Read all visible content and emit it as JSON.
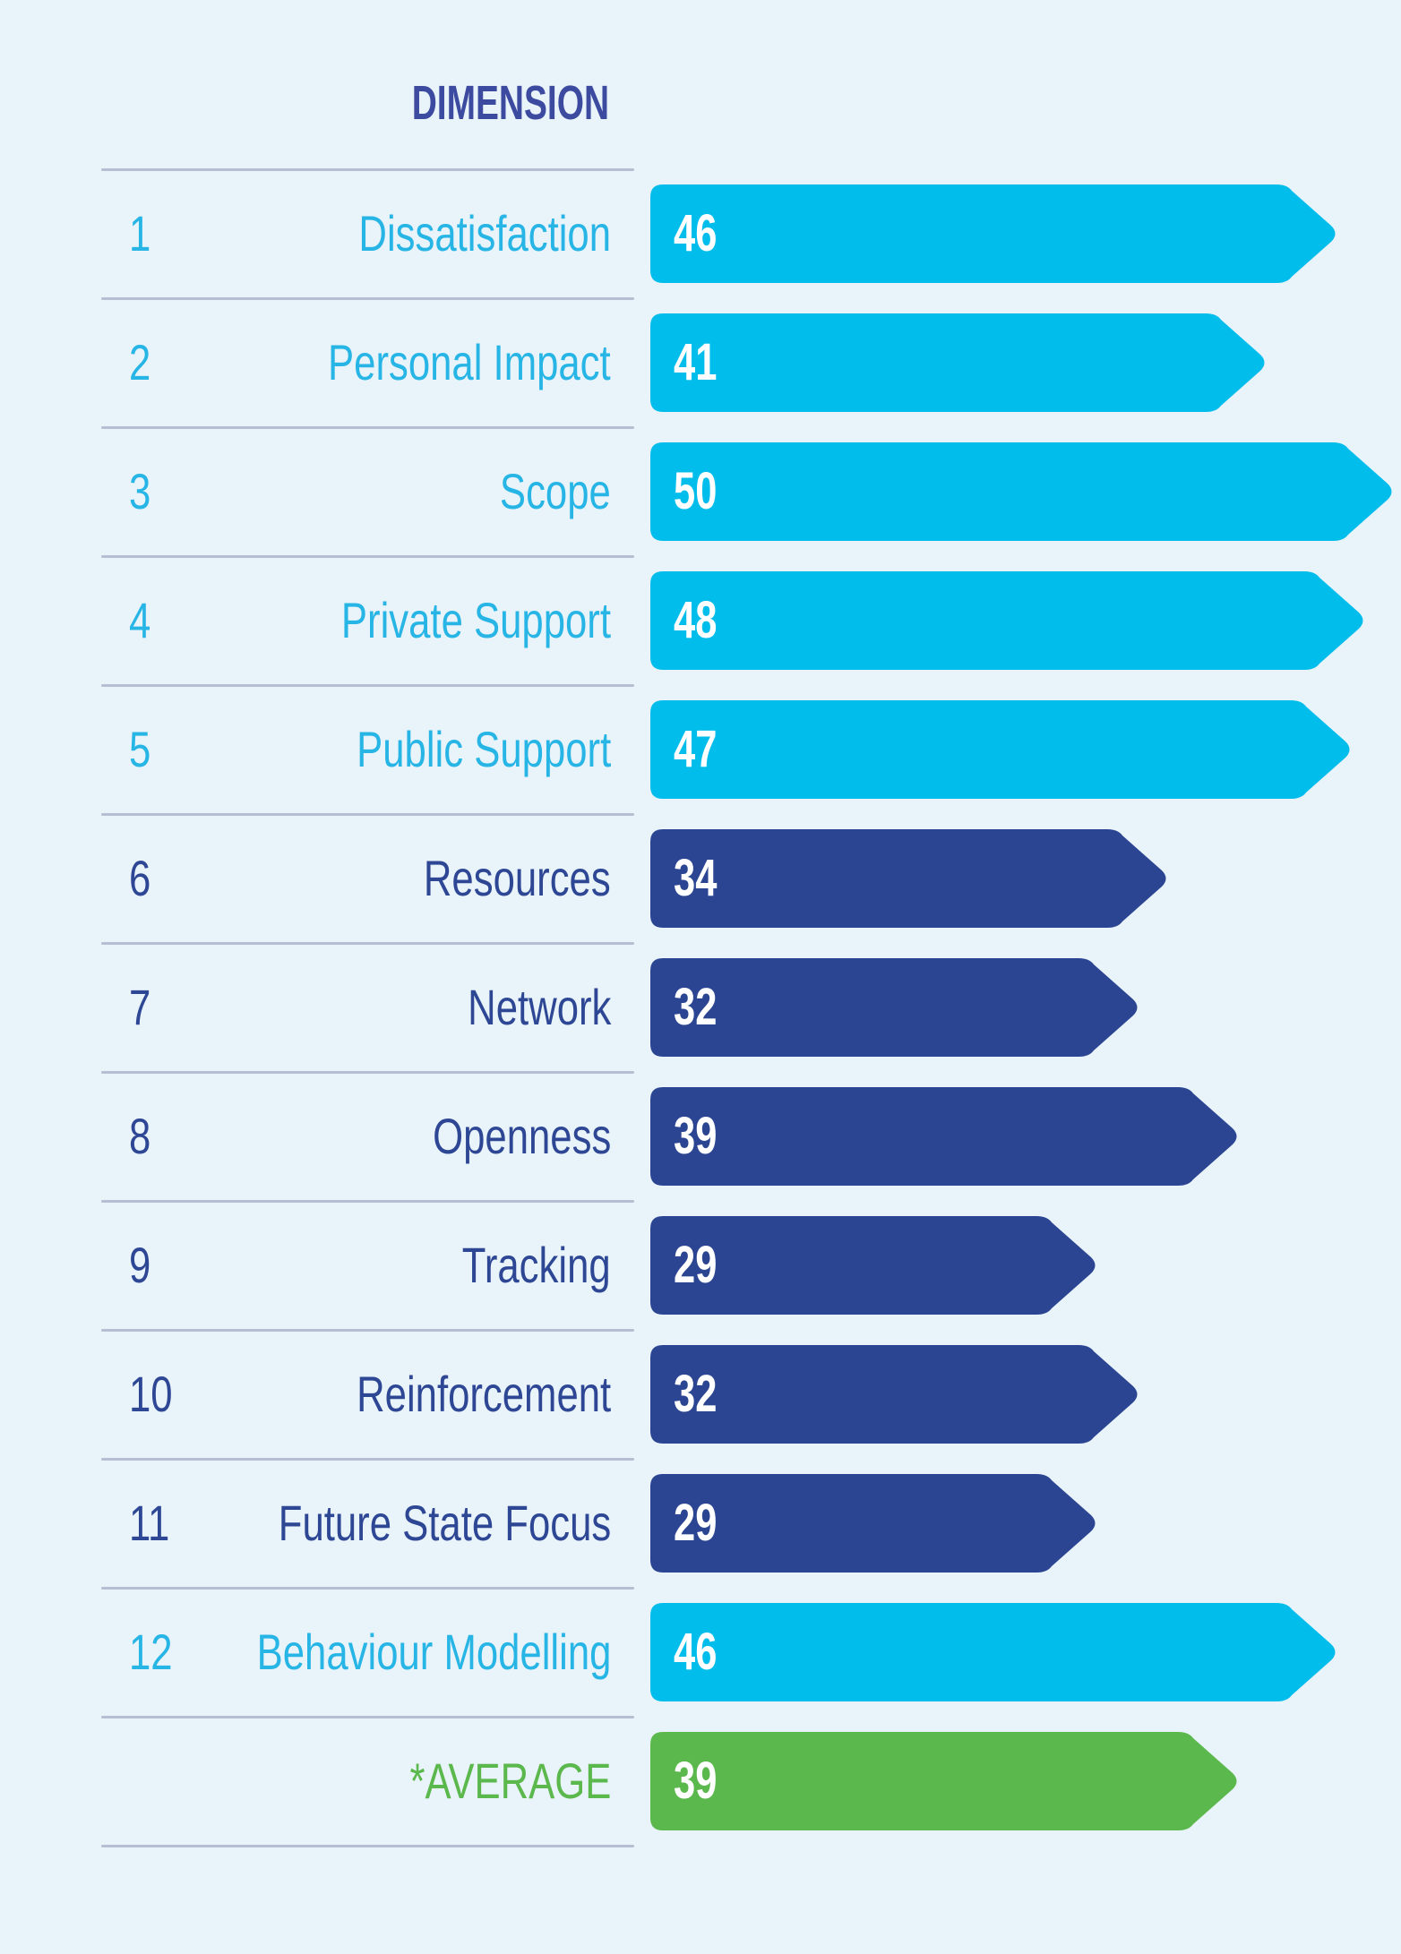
{
  "header": {
    "column_title": "DIMENSION"
  },
  "chart_data": {
    "type": "bar",
    "orientation": "horizontal",
    "column_header": "DIMENSION",
    "xlim": [
      0,
      50
    ],
    "value_labels": "inside-left, white bold",
    "bar_shape": "rounded rectangle with chevron arrow tip on right",
    "colors": {
      "cyan": "#00bdeb",
      "cyan_text": "#27b5e6",
      "dark": "#2b4592",
      "dark_text": "#2e4795",
      "green": "#5bb84c",
      "green_text": "#5bb84c",
      "title_text": "#3c4ba0",
      "divider": "#b5bfd1",
      "background": "#e9f3fa",
      "value_text": "#ffffff"
    },
    "rows": [
      {
        "number": "1",
        "label": "Dissatisfaction",
        "value": 46,
        "color_key": "cyan",
        "kind": "dimension"
      },
      {
        "number": "2",
        "label": "Personal Impact",
        "value": 41,
        "color_key": "cyan",
        "kind": "dimension"
      },
      {
        "number": "3",
        "label": "Scope",
        "value": 50,
        "color_key": "cyan",
        "kind": "dimension"
      },
      {
        "number": "4",
        "label": "Private Support",
        "value": 48,
        "color_key": "cyan",
        "kind": "dimension"
      },
      {
        "number": "5",
        "label": "Public Support",
        "value": 47,
        "color_key": "cyan",
        "kind": "dimension"
      },
      {
        "number": "6",
        "label": "Resources",
        "value": 34,
        "color_key": "dark",
        "kind": "dimension"
      },
      {
        "number": "7",
        "label": "Network",
        "value": 32,
        "color_key": "dark",
        "kind": "dimension"
      },
      {
        "number": "8",
        "label": "Openness",
        "value": 39,
        "color_key": "dark",
        "kind": "dimension"
      },
      {
        "number": "9",
        "label": "Tracking",
        "value": 29,
        "color_key": "dark",
        "kind": "dimension"
      },
      {
        "number": "10",
        "label": "Reinforcement",
        "value": 32,
        "color_key": "dark",
        "kind": "dimension"
      },
      {
        "number": "11",
        "label": "Future State Focus",
        "value": 29,
        "color_key": "dark",
        "kind": "dimension"
      },
      {
        "number": "12",
        "label": "Behaviour Modelling",
        "value": 46,
        "color_key": "cyan",
        "kind": "dimension"
      },
      {
        "number": "",
        "label": "*AVERAGE",
        "value": 39,
        "color_key": "green",
        "kind": "average"
      }
    ]
  }
}
